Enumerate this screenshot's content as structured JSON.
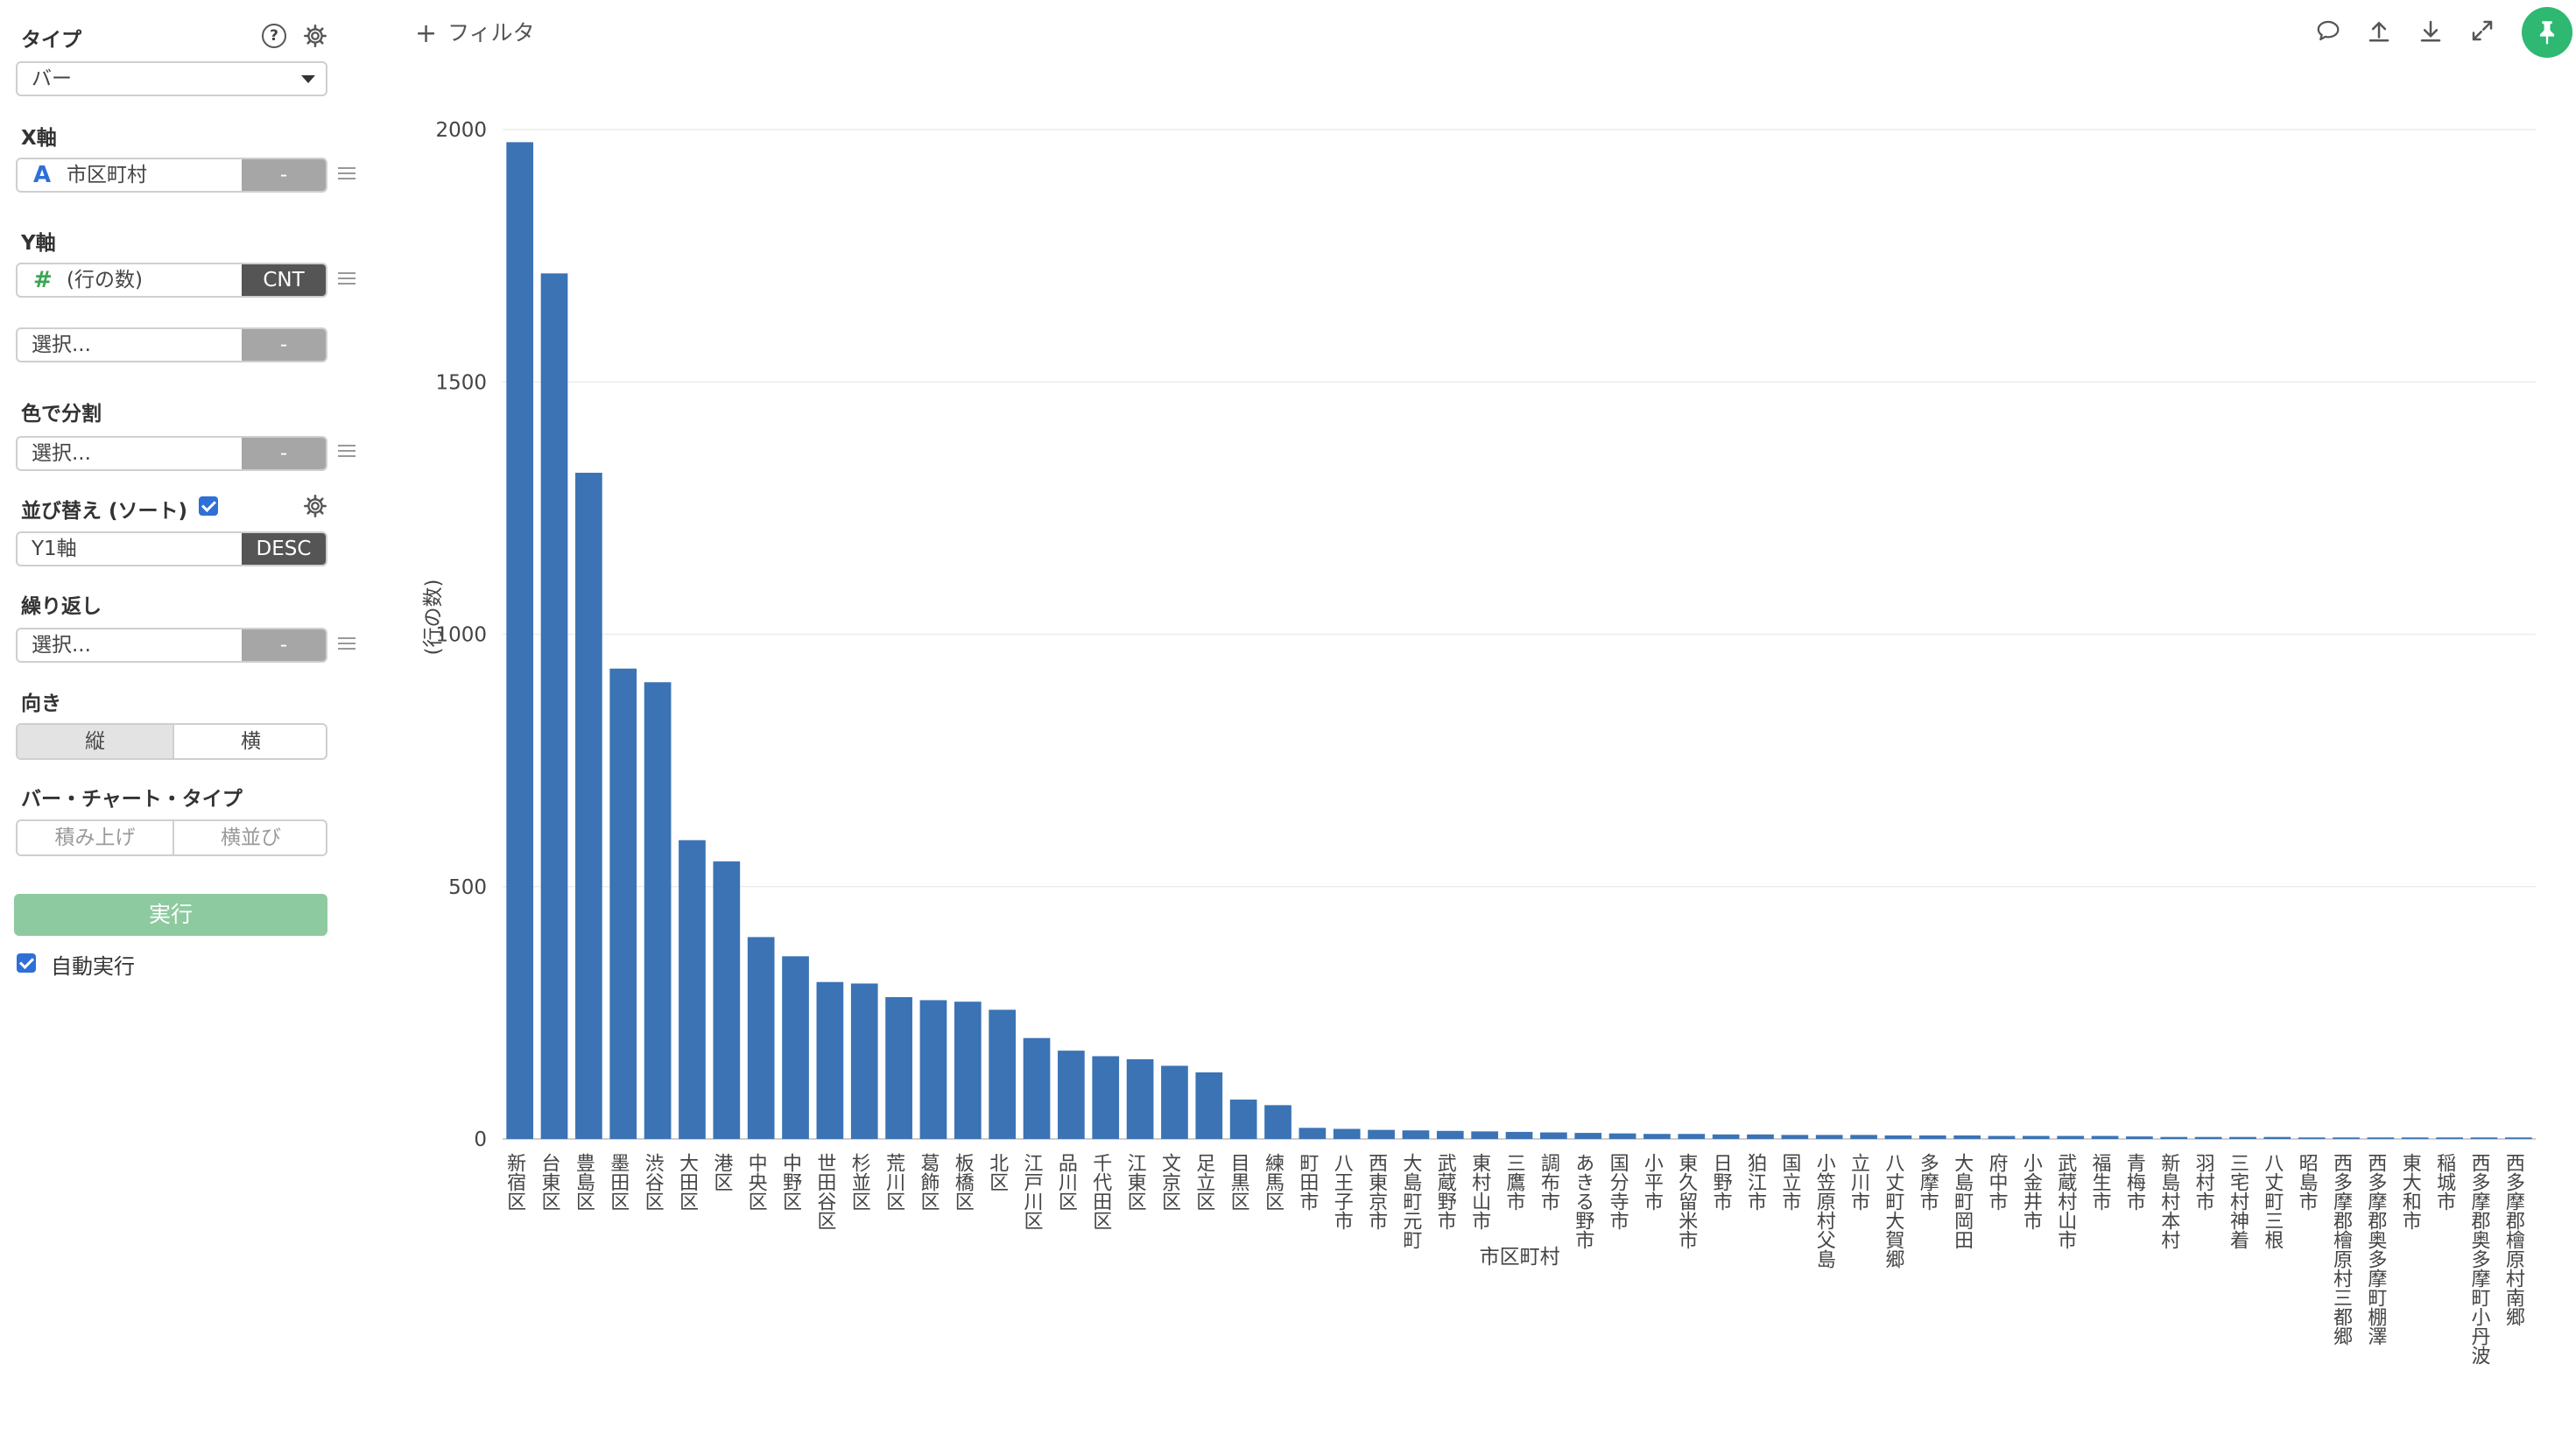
{
  "left_panel": {
    "type_label": "タイプ",
    "type_value": "バー",
    "x_axis_label": "X軸",
    "x_axis_icon": "A",
    "x_axis_value": "市区町村",
    "x_axis_agg": "-",
    "y_axis_label": "Y軸",
    "y_axis_icon": "#",
    "y_axis_value": "(行の数)",
    "y_axis_agg": "CNT",
    "y2_placeholder": "選択...",
    "y2_agg": "-",
    "color_label": "色で分割",
    "color_placeholder": "選択...",
    "color_agg": "-",
    "sort_label": "並び替え (ソート)",
    "sort_value": "Y1軸",
    "sort_order": "DESC",
    "repeat_label": "繰り返し",
    "repeat_placeholder": "選択...",
    "repeat_agg": "-",
    "orientation_label": "向き",
    "orientation_vertical": "縦",
    "orientation_horizontal": "横",
    "bar_type_label": "バー・チャート・タイプ",
    "bar_type_stacked": "積み上げ",
    "bar_type_side": "横並び",
    "run_button": "実行",
    "auto_run_label": "自動実行"
  },
  "top_bar": {
    "filter_label": "フィルタ",
    "icons": [
      "comment-icon",
      "upload-icon",
      "download-icon",
      "expand-icon",
      "pin-icon"
    ]
  },
  "colors": {
    "bar": "#3b73b4",
    "run_button": "#8ecaa0",
    "pin_button": "#2eb872",
    "checkbox": "#2f6fd8"
  },
  "chart_data": {
    "type": "bar",
    "title": "",
    "xlabel": "",
    "ylabel": "(行の数)",
    "ylim": [
      0,
      2000
    ],
    "yticks": [
      0,
      500,
      1000,
      1500,
      2000
    ],
    "grid": true,
    "categories": [
      "新宿区",
      "台東区",
      "豊島区",
      "墨田区",
      "渋谷区",
      "大田区",
      "港区",
      "中央区",
      "中野区",
      "世田谷区",
      "杉並区",
      "荒川区",
      "葛飾区",
      "板橋区",
      "北区",
      "江戸川区",
      "品川区",
      "千代田区",
      "江東区",
      "文京区",
      "足立区",
      "目黒区",
      "練馬区",
      "町田市",
      "八王子市",
      "西東京市",
      "大島町元町",
      "武蔵野市",
      "東村山市",
      "三鷹市",
      "調布市",
      "あきる野市",
      "国分寺市",
      "小平市",
      "東久留米市",
      "日野市",
      "狛江市",
      "国立市",
      "小笠原村父島",
      "立川市",
      "八丈町大賀郷",
      "多摩市",
      "大島町岡田",
      "府中市",
      "小金井市",
      "武蔵村山市",
      "福生市",
      "青梅市",
      "新島村本村",
      "羽村市",
      "三宅村神着",
      "八丈町三根",
      "昭島市",
      "西多摩郡檜原村三都郷",
      "西多摩郡奥多摩町棚澤",
      "東大和市",
      "稲城市",
      "西多摩郡奥多摩町小丹波",
      "西多摩郡檜原村南郷"
    ],
    "values": [
      1975,
      1715,
      1320,
      932,
      905,
      592,
      550,
      400,
      362,
      311,
      308,
      281,
      275,
      272,
      256,
      200,
      175,
      164,
      158,
      145,
      132,
      78,
      67,
      22,
      20,
      18,
      17,
      16,
      15,
      14,
      13,
      12,
      11,
      10,
      10,
      9,
      9,
      8,
      8,
      8,
      7,
      7,
      7,
      6,
      6,
      6,
      6,
      5,
      4,
      4,
      4,
      4,
      3,
      3,
      3,
      3,
      3,
      3,
      3
    ],
    "extra_labels": [
      {
        "text": "市区町村",
        "category_index": 28
      }
    ]
  }
}
